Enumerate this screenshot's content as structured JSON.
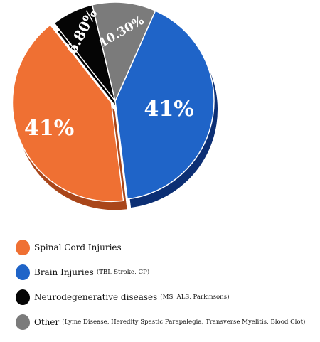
{
  "chart_data": {
    "type": "pie",
    "title": "",
    "slices": [
      {
        "label": "41%",
        "value": 41,
        "color": "#1f64c8",
        "shadow": "#0c2f74"
      },
      {
        "label": "41%",
        "value": 41,
        "color": "#ef7033",
        "shadow": "#a9461a"
      },
      {
        "label": "6.80%",
        "value": 6.8,
        "color": "#050505",
        "shadow": "#000000"
      },
      {
        "label": "10.30%",
        "value": 10.3,
        "color": "#7b7b7b",
        "shadow": "#474747"
      }
    ],
    "legend": {
      "position": "bottom-left",
      "items": [
        {
          "name": "Spinal Cord Injuries",
          "detail": "",
          "color": "#ef7033"
        },
        {
          "name": "Brain Injuries",
          "detail": "(TBI, Stroke, CP)",
          "color": "#1f64c8"
        },
        {
          "name": "Neurodegenerative diseases",
          "detail": "(MS, ALS, Parkinsons)",
          "color": "#050505"
        },
        {
          "name": "Other",
          "detail": "(Lyme Disease, Heredity Spastic Parapalegia, Transverse Myelitis, Blood Clot)",
          "color": "#7b7b7b"
        }
      ]
    }
  }
}
